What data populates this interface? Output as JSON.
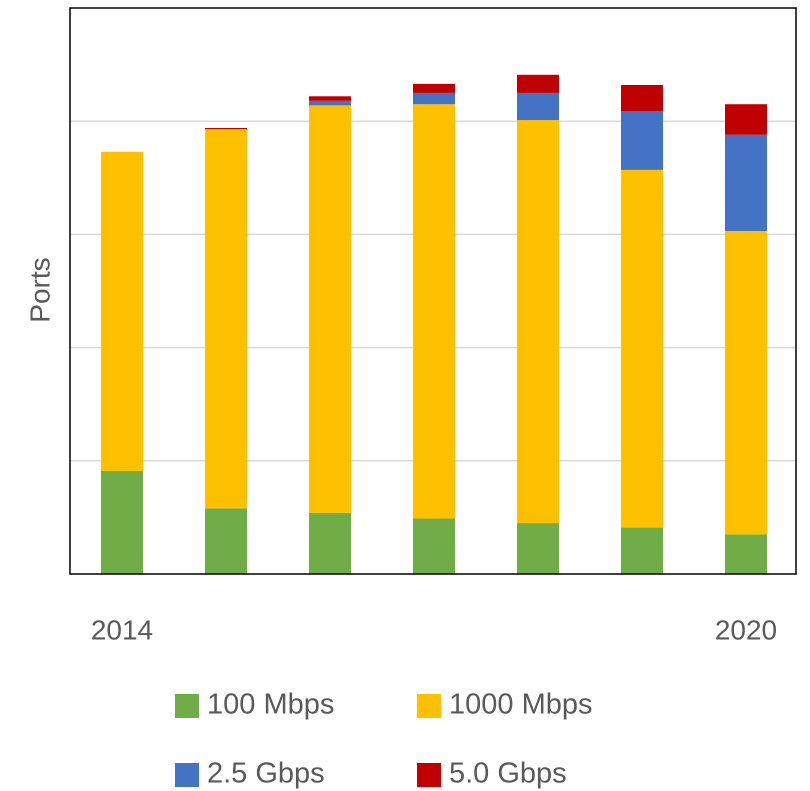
{
  "chart_data": {
    "type": "stacked_bar",
    "y_label": "Ports",
    "categories": [
      "2014",
      null,
      null,
      null,
      null,
      null,
      "2020"
    ],
    "series": [
      {
        "name": "100 Mbps",
        "color": "#70ad47",
        "values": [
          0.91,
          0.58,
          0.54,
          0.49,
          0.45,
          0.41,
          0.35
        ]
      },
      {
        "name": "1000 Mbps",
        "color": "#ffc000",
        "values": [
          2.82,
          3.35,
          3.6,
          3.66,
          3.56,
          3.16,
          2.68
        ]
      },
      {
        "name": "2.5 Gbps",
        "color": "#4472c4",
        "values": [
          0,
          0,
          0.04,
          0.1,
          0.24,
          0.52,
          0.85
        ]
      },
      {
        "name": "5.0 Gbps",
        "color": "#c00000",
        "values": [
          0,
          0.01,
          0.04,
          0.08,
          0.16,
          0.23,
          0.27
        ]
      }
    ],
    "ylim": [
      0,
      5
    ],
    "yticks": [
      1,
      2,
      3,
      4
    ],
    "grid": true
  }
}
